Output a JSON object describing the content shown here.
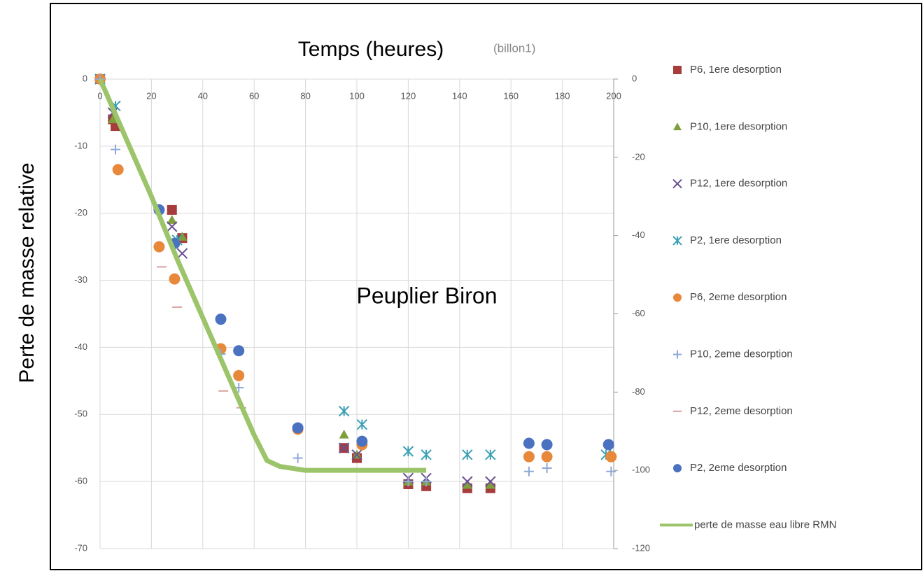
{
  "chart_data": {
    "type": "scatter",
    "title": "Temps (heures)",
    "subtitle": "(billon1)",
    "y_label": "Perte de masse relative",
    "annotation": "Peuplier Biron",
    "xlim": [
      0,
      200
    ],
    "xticks": [
      0,
      20,
      40,
      60,
      80,
      100,
      120,
      140,
      160,
      180,
      200
    ],
    "ylim": [
      -70,
      0
    ],
    "yticks": [
      0,
      -10,
      -20,
      -30,
      -40,
      -50,
      -60,
      -70
    ],
    "y2lim": [
      -120,
      0
    ],
    "y2ticks": [
      0,
      -20,
      -40,
      -60,
      -80,
      -100,
      -120
    ],
    "grid": true,
    "legend": "right",
    "series": [
      {
        "name": "P6, 1ere desorption",
        "color": "#a63c3c",
        "marker": "square",
        "x": [
          0,
          5,
          6,
          28,
          32,
          95,
          100,
          120,
          127,
          143,
          152
        ],
        "values": [
          0,
          -6,
          -7,
          -19.5,
          -23.7,
          -55,
          -56.5,
          -60.4,
          -60.7,
          -61,
          -61
        ]
      },
      {
        "name": "P10, 1ere desorption",
        "color": "#7ea03a",
        "marker": "triangle",
        "x": [
          0,
          5,
          28,
          32,
          95,
          100,
          120,
          127,
          143,
          152
        ],
        "values": [
          0,
          -6,
          -21,
          -23.5,
          -53,
          -56,
          -60,
          -60,
          -60.5,
          -60.5
        ]
      },
      {
        "name": "P12, 1ere desorption",
        "color": "#6a4f8f",
        "marker": "x",
        "x": [
          0,
          5,
          28,
          32,
          95,
          100,
          120,
          127,
          143,
          152
        ],
        "values": [
          0,
          -5,
          -22,
          -26,
          -55,
          -56,
          -59.5,
          -59.5,
          -60,
          -60
        ]
      },
      {
        "name": "P2, 1ere desorption",
        "color": "#3aa0b4",
        "marker": "asterisk",
        "x": [
          0,
          6,
          30,
          95,
          102,
          120,
          127,
          143,
          152,
          197
        ],
        "values": [
          0,
          -4,
          -24,
          -49.5,
          -51.5,
          -55.5,
          -56,
          -56,
          -56,
          -56
        ]
      },
      {
        "name": "P6, 2eme desorption",
        "color": "#e8883a",
        "marker": "circle",
        "x": [
          0,
          7,
          23,
          29,
          47,
          54,
          77,
          102,
          167,
          174,
          199
        ],
        "values": [
          0,
          -13.5,
          -25,
          -29.8,
          -40.2,
          -44.2,
          -52.2,
          -54.5,
          -56.3,
          -56.3,
          -56.3
        ]
      },
      {
        "name": "P10, 2eme desorption",
        "color": "#8fa8d8",
        "marker": "plus",
        "x": [
          0,
          6,
          47,
          54,
          77,
          120,
          127,
          167,
          174,
          199
        ],
        "values": [
          0,
          -10.5,
          -41,
          -46,
          -56.5,
          -60,
          -60,
          -58.5,
          -58,
          -58.5
        ]
      },
      {
        "name": "P12, 2eme desorption",
        "color": "#d8a0a0",
        "marker": "dash",
        "x": [
          24,
          30,
          48,
          55,
          77
        ],
        "values": [
          -28,
          -34,
          -46.5,
          -49,
          -52
        ]
      },
      {
        "name": "P2, 2eme desorption",
        "color": "#4a72c0",
        "marker": "circle",
        "x": [
          23,
          29,
          47,
          54,
          77,
          102,
          167,
          174,
          198
        ],
        "values": [
          -19.5,
          -24.5,
          -35.8,
          -40.5,
          -52,
          -54,
          -54.3,
          -54.5,
          -54.5
        ]
      },
      {
        "name": "perte de masse eau libre RMN",
        "color": "#9cc46a",
        "marker": "line",
        "axis": "y2",
        "x": [
          0,
          10,
          20,
          30,
          40,
          50,
          60,
          65,
          70,
          80,
          100,
          127
        ],
        "values": [
          0,
          -15,
          -30,
          -46,
          -61,
          -76,
          -91,
          -97.5,
          -99,
          -100,
          -100,
          -100
        ]
      }
    ]
  }
}
